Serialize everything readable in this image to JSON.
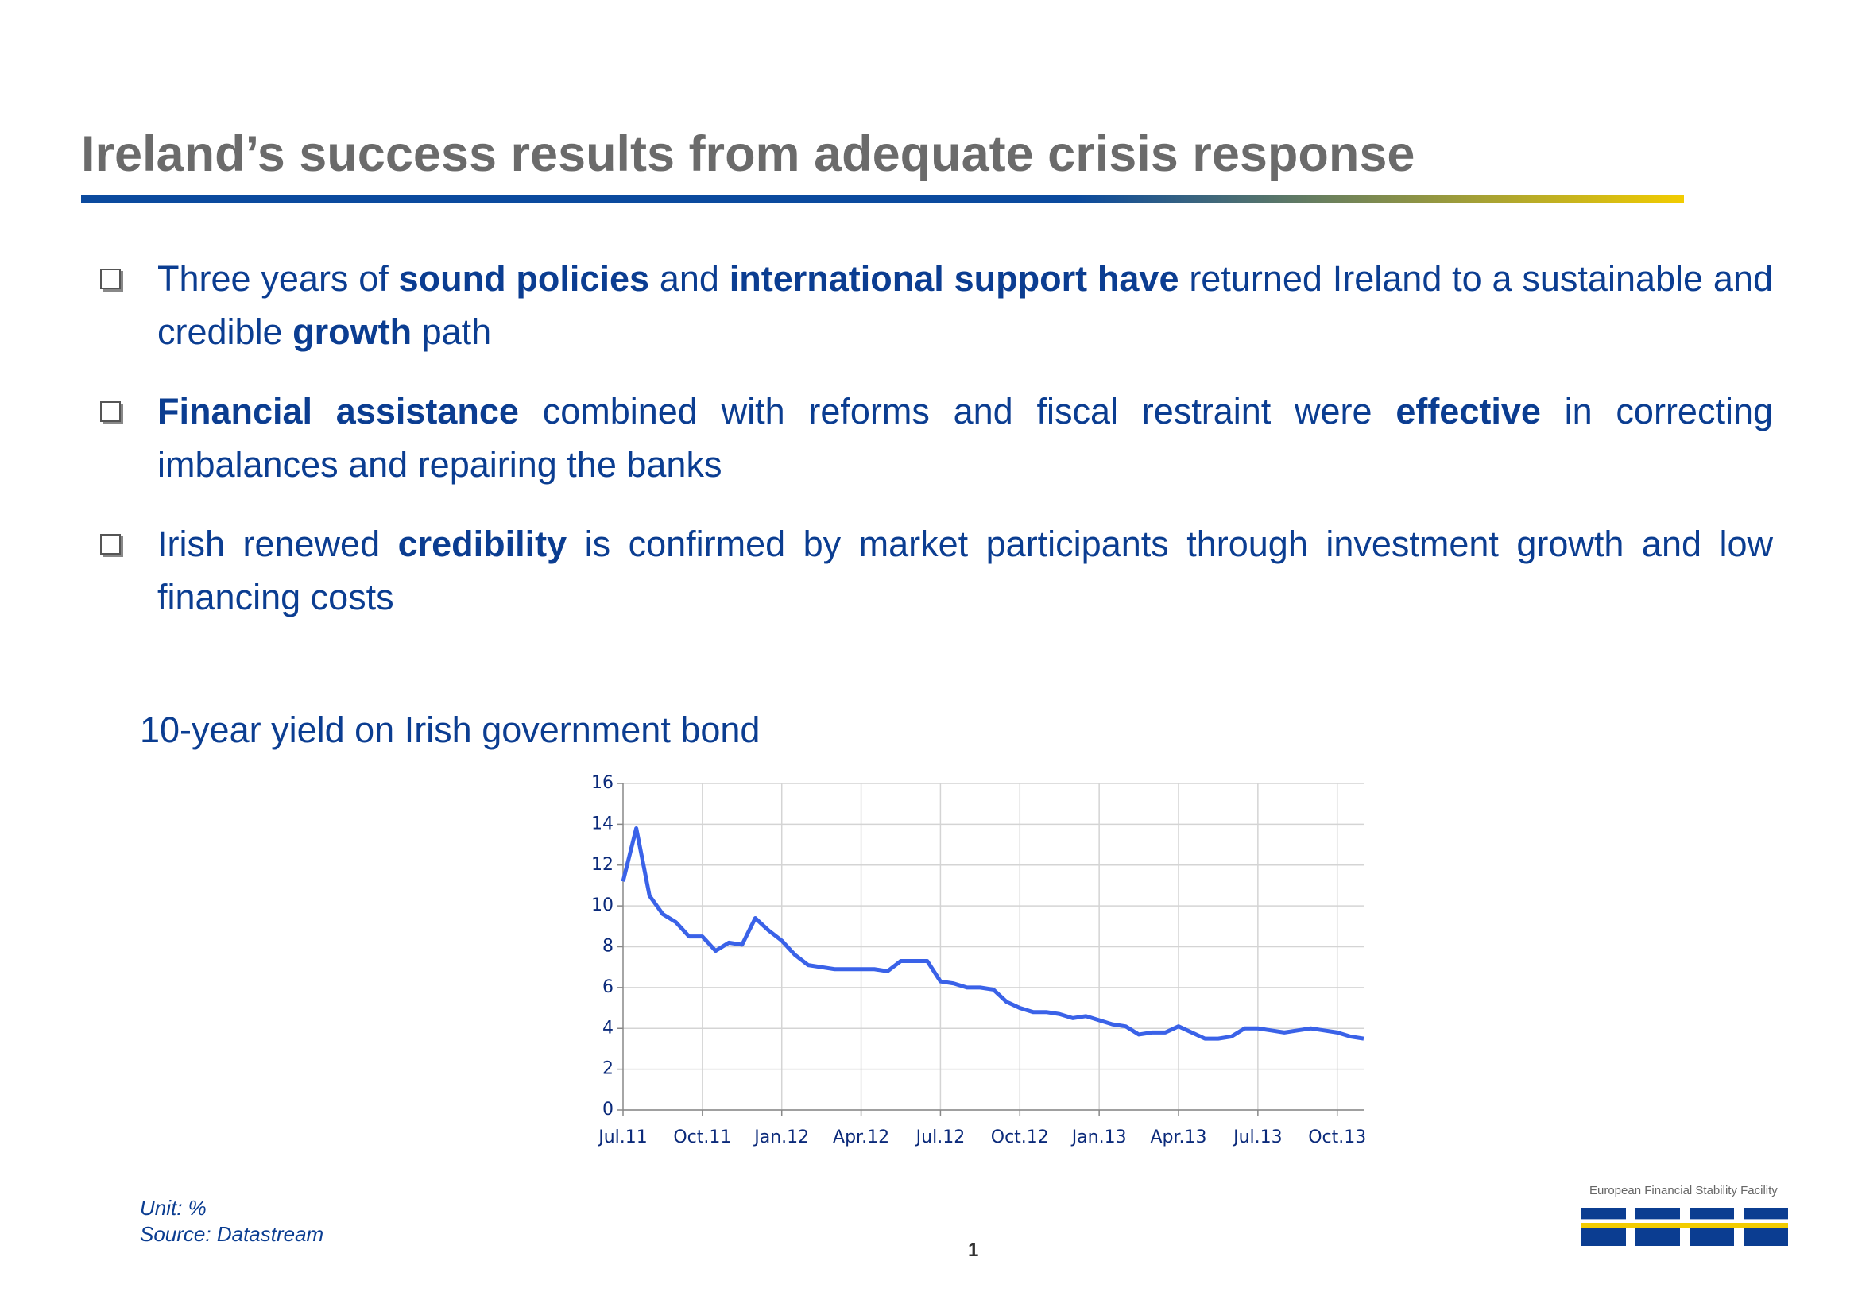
{
  "header": {
    "title": "Ireland’s success results from adequate crisis response"
  },
  "bullets": [
    [
      {
        "text": "Three years of ",
        "bold": false
      },
      {
        "text": "sound policies",
        "bold": true
      },
      {
        "text": " and ",
        "bold": false
      },
      {
        "text": "international support have",
        "bold": true
      },
      {
        "text": " returned Ireland to a sustainable and credible ",
        "bold": false
      },
      {
        "text": "growth",
        "bold": true
      },
      {
        "text": " path",
        "bold": false
      }
    ],
    [
      {
        "text": "Financial assistance",
        "bold": true
      },
      {
        "text": " combined with reforms and fiscal restraint were ",
        "bold": false
      },
      {
        "text": "effective",
        "bold": true
      },
      {
        "text": " in correcting imbalances and repairing the banks",
        "bold": false
      }
    ],
    [
      {
        "text": "Irish renewed ",
        "bold": false
      },
      {
        "text": "credibility",
        "bold": true
      },
      {
        "text": " is confirmed by market participants through investment growth and low financing costs",
        "bold": false
      }
    ]
  ],
  "chart_data": {
    "type": "line",
    "title": "10-year yield on Irish government bond",
    "categories": [
      "Jul.11",
      null,
      null,
      null,
      null,
      null,
      "Oct.11",
      null,
      null,
      null,
      null,
      null,
      "Jan.12",
      null,
      null,
      null,
      null,
      null,
      "Apr.12",
      null,
      null,
      null,
      null,
      null,
      "Jul.12",
      null,
      null,
      null,
      null,
      null,
      "Oct.12",
      null,
      null,
      null,
      null,
      null,
      "Jan.13",
      null,
      null,
      null,
      null,
      null,
      "Apr.13",
      null,
      null,
      null,
      null,
      null,
      "Jul.13",
      null,
      null,
      null,
      null,
      null,
      "Oct.13",
      null,
      null
    ],
    "values": [
      11.2,
      13.8,
      10.5,
      9.6,
      9.2,
      8.5,
      8.5,
      7.8,
      8.2,
      8.1,
      9.4,
      8.8,
      8.3,
      7.6,
      7.1,
      7.0,
      6.9,
      6.9,
      6.9,
      6.9,
      6.8,
      7.3,
      7.3,
      7.3,
      6.3,
      6.2,
      6.0,
      6.0,
      5.9,
      5.3,
      5.0,
      4.8,
      4.8,
      4.7,
      4.5,
      4.6,
      4.4,
      4.2,
      4.1,
      3.7,
      3.8,
      3.8,
      4.1,
      3.8,
      3.5,
      3.5,
      3.6,
      4.0,
      4.0,
      3.9,
      3.8,
      3.9,
      4.0,
      3.9,
      3.8,
      3.6,
      3.5
    ],
    "color": "#3a62e8",
    "ylim": [
      0,
      16
    ],
    "yticks": [
      0,
      2,
      4,
      6,
      8,
      10,
      12,
      14,
      16
    ],
    "grid": true
  },
  "footer": {
    "unit": "Unit: %",
    "source": "Source: Datastream",
    "page": "1",
    "org": "European Financial Stability Facility"
  }
}
